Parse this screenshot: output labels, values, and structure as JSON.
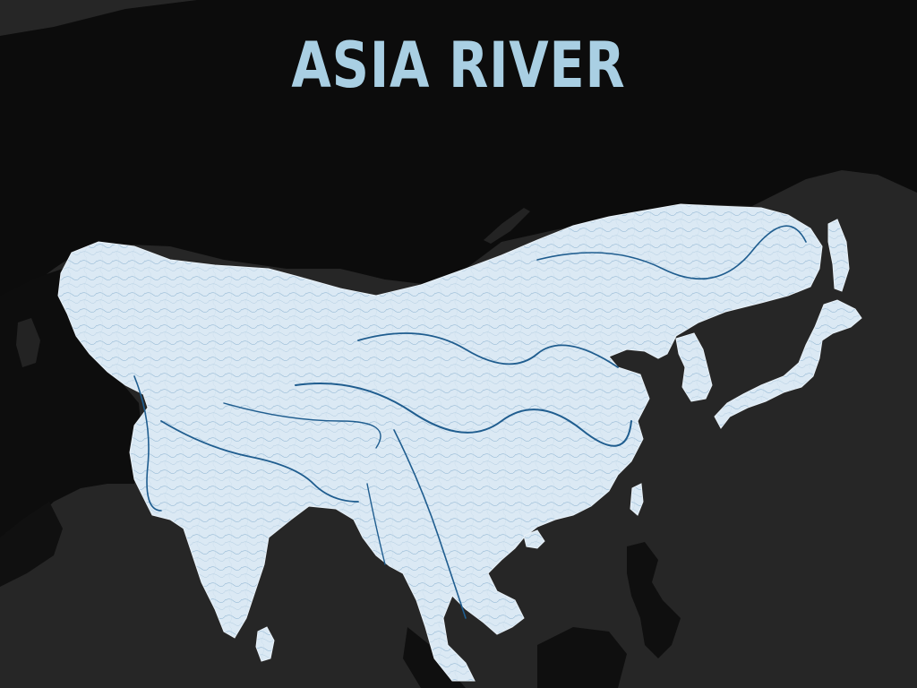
{
  "title": "ASIA RIVER",
  "colors": {
    "background_sea": "#262626",
    "land_dark": "#0b0b0b",
    "highlight_land": "#d9e8f3",
    "river": "#1f5d8f",
    "title": "#a9cfe3"
  }
}
